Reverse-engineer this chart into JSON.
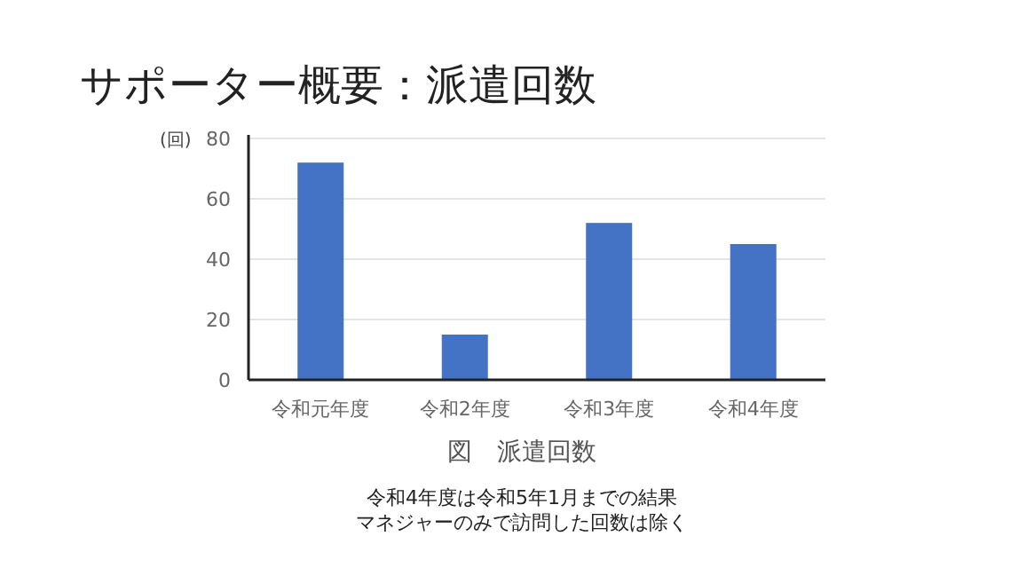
{
  "chart_data": {
    "type": "bar",
    "title": "サポーター概要：派遣回数",
    "ylabel": "(回)",
    "xlabel": "図　派遣回数",
    "categories": [
      "令和元年度",
      "令和2年度",
      "令和3年度",
      "令和4年度"
    ],
    "values": [
      72,
      15,
      52,
      45
    ],
    "color": "#4472c4",
    "ylim": [
      0,
      80
    ],
    "yticks": [
      0,
      20,
      40,
      60,
      80
    ],
    "grid": "y",
    "annotations": [
      "令和4年度は令和5年1月までの結果",
      "マネジャーのみで訪問した回数は除く"
    ]
  }
}
